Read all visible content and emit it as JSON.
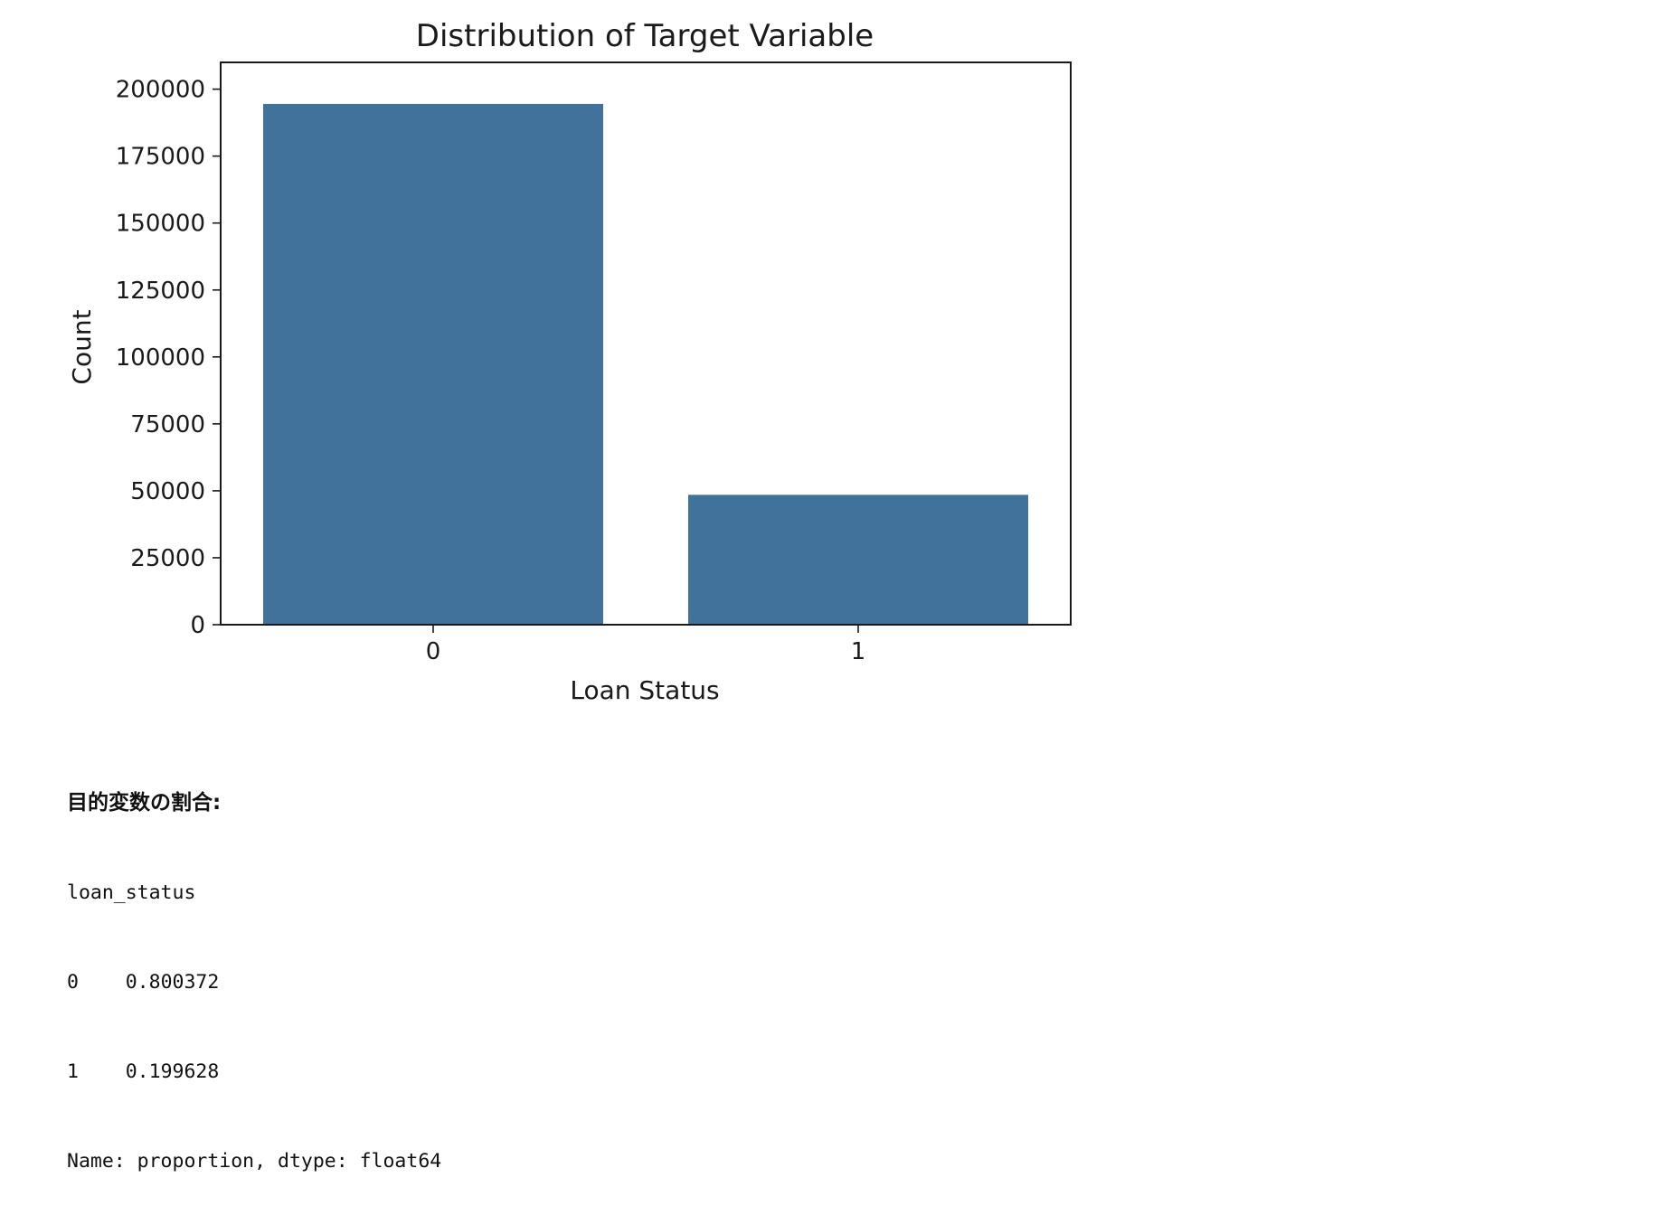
{
  "chart_data": {
    "type": "bar",
    "title": "Distribution of Target Variable",
    "xlabel": "Loan Status",
    "ylabel": "Count",
    "categories": [
      "0",
      "1"
    ],
    "values": [
      194500,
      48500
    ],
    "ylim": [
      0,
      210000
    ],
    "yticks": [
      0,
      25000,
      50000,
      75000,
      100000,
      125000,
      150000,
      175000,
      200000
    ],
    "grid": false,
    "bar_color": "#41729b"
  },
  "output": {
    "header": "目的変数の割合:",
    "series_name": "loan_status",
    "rows": [
      {
        "index": "0",
        "value": "0.800372"
      },
      {
        "index": "1",
        "value": "0.199628"
      }
    ],
    "footer": "Name: proportion, dtype: float64"
  }
}
